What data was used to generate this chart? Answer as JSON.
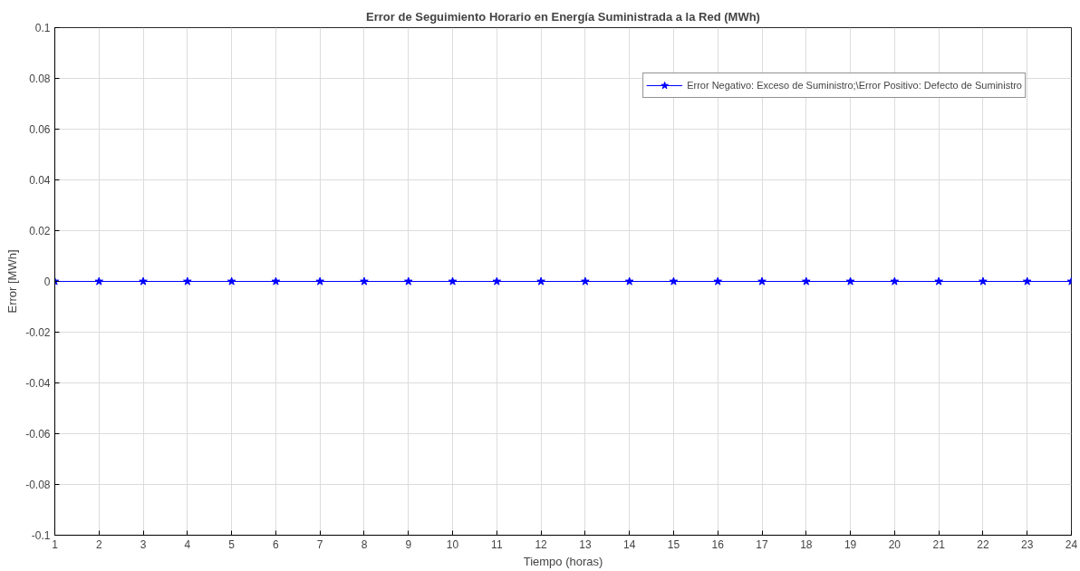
{
  "chart_data": {
    "type": "line",
    "title": "Error de Seguimiento Horario en Energía Suministrada a la Red (MWh)",
    "xlabel": "Tiempo (horas)",
    "ylabel": "Error [MWh]",
    "x": [
      1,
      2,
      3,
      4,
      5,
      6,
      7,
      8,
      9,
      10,
      11,
      12,
      13,
      14,
      15,
      16,
      17,
      18,
      19,
      20,
      21,
      22,
      23,
      24
    ],
    "series": [
      {
        "name": "Error Negativo: Exceso de Suministro;\\Error Positivo: Defecto de Suministro",
        "color": "#0000ff",
        "values": [
          0,
          0,
          0,
          0,
          0,
          0,
          0,
          0,
          0,
          0,
          0,
          0,
          0,
          0,
          0,
          0,
          0,
          0,
          0,
          0,
          0,
          0,
          0,
          0
        ]
      }
    ],
    "xlim": [
      1,
      24
    ],
    "ylim": [
      -0.1,
      0.1
    ],
    "xticks": [
      1,
      2,
      3,
      4,
      5,
      6,
      7,
      8,
      9,
      10,
      11,
      12,
      13,
      14,
      15,
      16,
      17,
      18,
      19,
      20,
      21,
      22,
      23,
      24
    ],
    "yticks": [
      -0.1,
      -0.08,
      -0.06,
      -0.04,
      -0.02,
      0,
      0.02,
      0.04,
      0.06,
      0.08,
      0.1
    ],
    "grid": true,
    "legend": "top right",
    "marker": "star",
    "line_style": "solid"
  }
}
